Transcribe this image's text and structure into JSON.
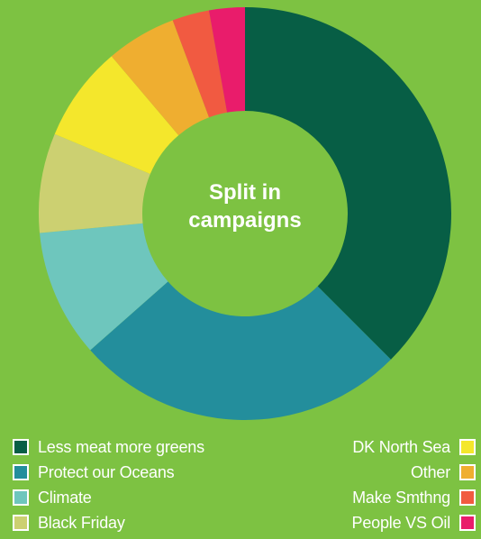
{
  "background": "#7dc242",
  "chart_data": {
    "type": "pie",
    "variant": "donut",
    "title": "Split in campaigns",
    "categories": [
      "Less meat more greens",
      "Protect our Oceans",
      "Climate",
      "Black Friday",
      "DK North Sea",
      "Other",
      "Make Smthng",
      "People VS Oil"
    ],
    "values": [
      37.5,
      26.0,
      10.0,
      7.8,
      7.5,
      5.5,
      2.9,
      2.8
    ],
    "colors": [
      "#075e45",
      "#238e9c",
      "#6ec6bd",
      "#ccd071",
      "#f4e72c",
      "#efae30",
      "#f15a41",
      "#e91c6b"
    ],
    "legend": {
      "placement": "bottom",
      "left": [
        {
          "label": "Less meat more greens",
          "color": "#075e45"
        },
        {
          "label": "Protect our Oceans",
          "color": "#238e9c"
        },
        {
          "label": "Climate",
          "color": "#6ec6bd"
        },
        {
          "label": "Black Friday",
          "color": "#ccd071"
        }
      ],
      "right": [
        {
          "label": "DK North Sea",
          "color": "#f4e72c"
        },
        {
          "label": "Other",
          "color": "#efae30"
        },
        {
          "label": "Make Smthng",
          "color": "#f15a41"
        },
        {
          "label": "People VS Oil",
          "color": "#e91c6b"
        }
      ]
    }
  }
}
